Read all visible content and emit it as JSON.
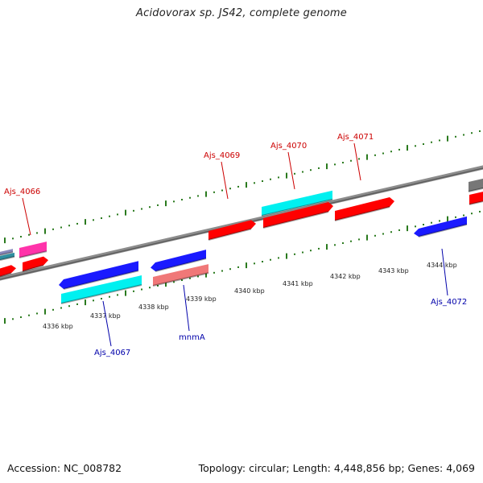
{
  "title": "Acidovorax sp. JS42, complete genome",
  "footer": {
    "accession": "Accession: NC_008782",
    "summary": "Topology: circular; Length: 4,448,856 bp; Genes: 4,069"
  },
  "colors": {
    "forward_label": "#cc0000",
    "reverse_label": "#0000aa",
    "red": "#ff0000",
    "blue": "#1a1aff",
    "cyan": "#00f0f0",
    "pink": "#f07878",
    "magenta": "#ff33aa",
    "grey": "#777777"
  },
  "scale_labels": [
    "4336 kbp",
    "4337 kbp",
    "4338 kbp",
    "4339 kbp",
    "4340 kbp",
    "4341 kbp",
    "4342 kbp",
    "4343 kbp",
    "4344 kbp"
  ],
  "gene_labels": [
    {
      "text": "Ajs_4066",
      "strand": "forward"
    },
    {
      "text": "Ajs_4069",
      "strand": "forward"
    },
    {
      "text": "Ajs_4070",
      "strand": "forward"
    },
    {
      "text": "Ajs_4071",
      "strand": "forward"
    },
    {
      "text": "Ajs_4067",
      "strand": "reverse"
    },
    {
      "text": "mnmA",
      "strand": "reverse"
    },
    {
      "text": "Ajs_4072",
      "strand": "reverse"
    }
  ]
}
